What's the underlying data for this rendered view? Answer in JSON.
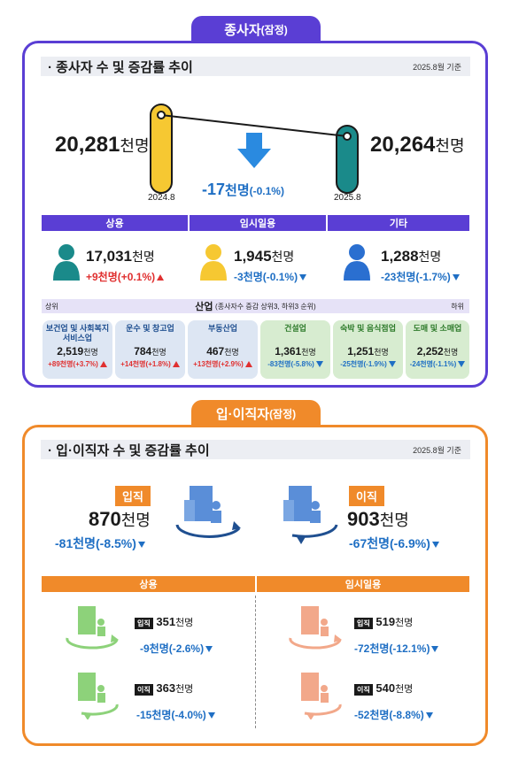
{
  "colors": {
    "purple": "#5a3ed4",
    "orange": "#f08a2a",
    "blue": "#1f6fc4",
    "red": "#e03030",
    "yellow": "#f6c832",
    "teal": "#1a8a8a"
  },
  "section1": {
    "tab": "종사자",
    "tab_small": "(잠정)",
    "title": "· 종사자 수 및 증감률 추이",
    "date": "2025.8월 기준",
    "left_value": "20,281",
    "left_unit": "천명",
    "left_label": "2024.8",
    "right_value": "20,264",
    "right_unit": "천명",
    "right_label": "2025.8",
    "change_value": "-17",
    "change_unit": "천명",
    "change_pct": "(-0.1%)",
    "cats": [
      {
        "name": "상용",
        "value": "17,031",
        "unit": "천명",
        "change": "+9천명(+0.1%)",
        "dir": "up",
        "icon": "person-teal-icon"
      },
      {
        "name": "임시일용",
        "value": "1,945",
        "unit": "천명",
        "change": "-3천명(-0.1%)",
        "dir": "down",
        "icon": "person-yellow-icon"
      },
      {
        "name": "기타",
        "value": "1,288",
        "unit": "천명",
        "change": "-23천명(-1.7%)",
        "dir": "down",
        "icon": "person-blue-icon"
      }
    ],
    "industry": {
      "title": "산업",
      "note": "(종사자수 증감 상위3, 하위3 순위)",
      "left_label": "상위",
      "right_label": "하위",
      "items": [
        {
          "name": "보건업 및 사회복지 서비스업",
          "value": "2,519",
          "unit": "천명",
          "change": "+89천명(+3.7%)",
          "dir": "up"
        },
        {
          "name": "운수 및 창고업",
          "value": "784",
          "unit": "천명",
          "change": "+14천명(+1.8%)",
          "dir": "up"
        },
        {
          "name": "부동산업",
          "value": "467",
          "unit": "천명",
          "change": "+13천명(+2.9%)",
          "dir": "up"
        },
        {
          "name": "건설업",
          "value": "1,361",
          "unit": "천명",
          "change": "-83천명(-5.8%)",
          "dir": "down"
        },
        {
          "name": "숙박 및 음식점업",
          "value": "1,251",
          "unit": "천명",
          "change": "-25천명(-1.9%)",
          "dir": "down"
        },
        {
          "name": "도매 및 소매업",
          "value": "2,252",
          "unit": "천명",
          "change": "-24천명(-1.1%)",
          "dir": "down"
        }
      ]
    }
  },
  "section2": {
    "tab": "입·이직자",
    "tab_small": "(잠정)",
    "title": "· 입·이직자 수 및 증감률 추이",
    "date": "2025.8월 기준",
    "hire": {
      "label": "입직",
      "value": "870",
      "unit": "천명",
      "change": "-81천명(-8.5%)"
    },
    "sep": {
      "label": "이직",
      "value": "903",
      "unit": "천명",
      "change": "-67천명(-6.9%)"
    },
    "regular": {
      "title": "상용",
      "hire": {
        "label": "입직",
        "value": "351",
        "unit": "천명",
        "change": "-9천명(-2.6%)"
      },
      "sep": {
        "label": "이직",
        "value": "363",
        "unit": "천명",
        "change": "-15천명(-4.0%)"
      }
    },
    "temp": {
      "title": "임시일용",
      "hire": {
        "label": "입직",
        "value": "519",
        "unit": "천명",
        "change": "-72천명(-12.1%)"
      },
      "sep": {
        "label": "이직",
        "value": "540",
        "unit": "천명",
        "change": "-52천명(-8.8%)"
      }
    }
  }
}
